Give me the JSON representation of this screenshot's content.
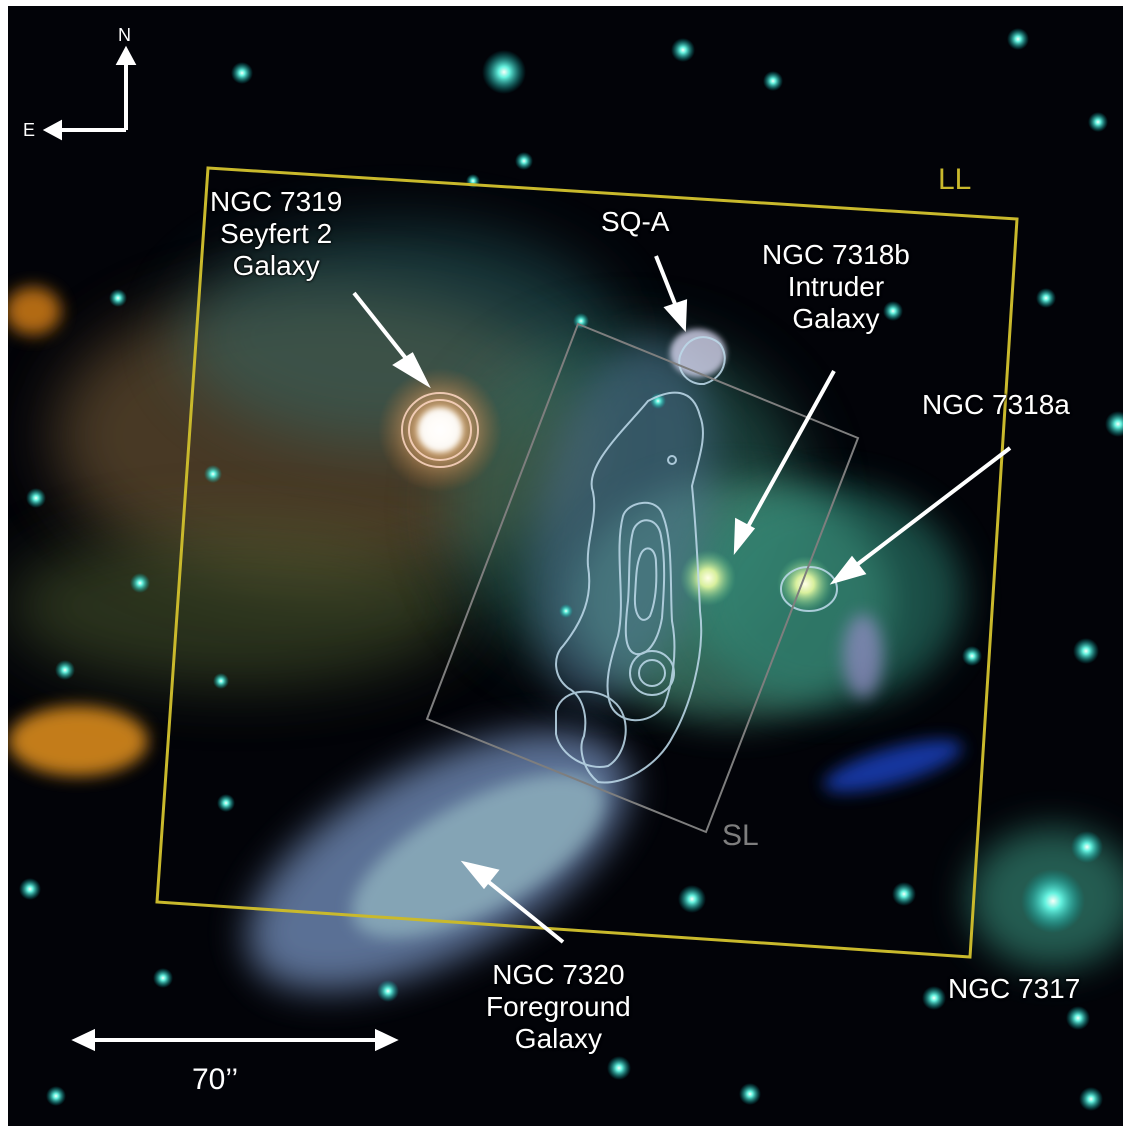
{
  "figure": {
    "compass": {
      "north_label": "N",
      "east_label": "E"
    },
    "slit_labels": {
      "long_low": "LL",
      "short_low": "SL"
    },
    "scale_bar": {
      "label": "70’’"
    },
    "galaxy_labels": {
      "ngc7319": [
        "NGC 7319",
        "Seyfert 2",
        "Galaxy"
      ],
      "sqa": [
        "SQ-A"
      ],
      "ngc7318b": [
        "NGC 7318b",
        "Intruder",
        "Galaxy"
      ],
      "ngc7318a": [
        "NGC 7318a"
      ],
      "ngc7320": [
        "NGC 7320",
        "Foreground",
        "Galaxy"
      ],
      "ngc7317": [
        "NGC 7317"
      ]
    },
    "colors": {
      "background": "#020308",
      "ll_box": "#c9b92c",
      "sl_box": "#7e7e7e",
      "contours": "#bcd8e8",
      "annotation": "#ffffff",
      "star": "#35d7d2"
    }
  }
}
